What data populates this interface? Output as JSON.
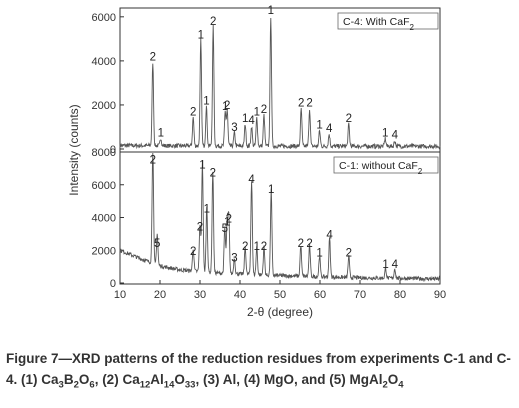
{
  "chart_data": {
    "type": "line",
    "xlabel": "2-θ (degree)",
    "ylabel": "Intensity (counts)",
    "xlim": [
      10,
      90
    ],
    "xticks": [
      "10",
      "20",
      "30",
      "40",
      "50",
      "60",
      "70",
      "80",
      "90"
    ],
    "panels": [
      {
        "legend": "C-4: With CaF",
        "legend_sub": "2",
        "ylim": [
          0,
          6400
        ],
        "yticks": [
          "0",
          "2000",
          "4000",
          "6000"
        ],
        "peaks": [
          {
            "x": 18.2,
            "y": 3800,
            "label": "2"
          },
          {
            "x": 20.2,
            "y": 350,
            "label": "1"
          },
          {
            "x": 28.3,
            "y": 1300,
            "label": "2"
          },
          {
            "x": 30.2,
            "y": 4800,
            "label": "1"
          },
          {
            "x": 31.6,
            "y": 1800,
            "label": "1"
          },
          {
            "x": 33.3,
            "y": 5400,
            "label": "2"
          },
          {
            "x": 36.3,
            "y": 1550,
            "label": "1"
          },
          {
            "x": 36.8,
            "y": 1600,
            "label": "2"
          },
          {
            "x": 38.6,
            "y": 600,
            "label": "3"
          },
          {
            "x": 41.3,
            "y": 1000,
            "label": "1"
          },
          {
            "x": 42.9,
            "y": 900,
            "label": "4"
          },
          {
            "x": 44.2,
            "y": 1300,
            "label": "1"
          },
          {
            "x": 46.0,
            "y": 1400,
            "label": "2"
          },
          {
            "x": 47.7,
            "y": 5900,
            "label": "1"
          },
          {
            "x": 55.3,
            "y": 1700,
            "label": "2"
          },
          {
            "x": 57.4,
            "y": 1700,
            "label": "2"
          },
          {
            "x": 59.9,
            "y": 700,
            "label": "1"
          },
          {
            "x": 62.3,
            "y": 550,
            "label": "4"
          },
          {
            "x": 67.2,
            "y": 1000,
            "label": "2"
          },
          {
            "x": 76.3,
            "y": 350,
            "label": "1"
          },
          {
            "x": 78.7,
            "y": 250,
            "label": "4"
          }
        ]
      },
      {
        "legend": "C-1:  without CaF",
        "legend_sub": "2",
        "ylim": [
          0,
          8000
        ],
        "yticks": [
          "0",
          "2000",
          "4000",
          "6000",
          "8000"
        ],
        "peaks": [
          {
            "x": 18.2,
            "y": 7000,
            "label": "2"
          },
          {
            "x": 19.3,
            "y": 1900,
            "label": "5"
          },
          {
            "x": 28.3,
            "y": 1400,
            "label": "2"
          },
          {
            "x": 30.0,
            "y": 2900,
            "label": "2"
          },
          {
            "x": 30.6,
            "y": 6700,
            "label": "1"
          },
          {
            "x": 31.7,
            "y": 4000,
            "label": "1"
          },
          {
            "x": 33.2,
            "y": 6200,
            "label": "2"
          },
          {
            "x": 36.2,
            "y": 2800,
            "label": "5"
          },
          {
            "x": 36.8,
            "y": 3200,
            "label": "1"
          },
          {
            "x": 37.2,
            "y": 3400,
            "label": "2"
          },
          {
            "x": 38.6,
            "y": 1000,
            "label": "3"
          },
          {
            "x": 41.3,
            "y": 1700,
            "label": "2"
          },
          {
            "x": 42.9,
            "y": 5800,
            "label": "4"
          },
          {
            "x": 44.2,
            "y": 1700,
            "label": "1"
          },
          {
            "x": 46.0,
            "y": 1700,
            "label": "2"
          },
          {
            "x": 47.8,
            "y": 5200,
            "label": "1"
          },
          {
            "x": 55.2,
            "y": 1900,
            "label": "2"
          },
          {
            "x": 57.4,
            "y": 1900,
            "label": "2"
          },
          {
            "x": 59.9,
            "y": 1300,
            "label": "1"
          },
          {
            "x": 62.4,
            "y": 2400,
            "label": "4"
          },
          {
            "x": 67.2,
            "y": 1300,
            "label": "2"
          },
          {
            "x": 76.4,
            "y": 600,
            "label": "1"
          },
          {
            "x": 78.7,
            "y": 600,
            "label": "4"
          }
        ],
        "baseline": [
          [
            10,
            2000
          ],
          [
            15,
            1500
          ],
          [
            20,
            1050
          ],
          [
            25,
            800
          ],
          [
            35,
            600
          ],
          [
            50,
            450
          ],
          [
            70,
            320
          ],
          [
            90,
            250
          ]
        ]
      }
    ]
  },
  "caption": {
    "fig": "Figure 7",
    "dash": "—",
    "lead": "XRD patterns of the reduction residues from experiments C-1 and C-4. (1) Ca",
    "seg": [
      {
        "t": "XRD patterns of the reduction residues from experiments C-1 and C-4. (1) Ca",
        "sub": false
      },
      {
        "t": "3",
        "sub": true
      },
      {
        "t": "B",
        "sub": false
      },
      {
        "t": "2",
        "sub": true
      },
      {
        "t": "O",
        "sub": false
      },
      {
        "t": "6",
        "sub": true
      },
      {
        "t": ", (2) Ca",
        "sub": false
      },
      {
        "t": "12",
        "sub": true
      },
      {
        "t": "Al",
        "sub": false
      },
      {
        "t": "14",
        "sub": true
      },
      {
        "t": "O",
        "sub": false
      },
      {
        "t": "33",
        "sub": true
      },
      {
        "t": ", (3) Al, (4) MgO, and (5) MgAl",
        "sub": false
      },
      {
        "t": "2",
        "sub": true
      },
      {
        "t": "O",
        "sub": false
      },
      {
        "t": "4",
        "sub": true
      }
    ]
  }
}
